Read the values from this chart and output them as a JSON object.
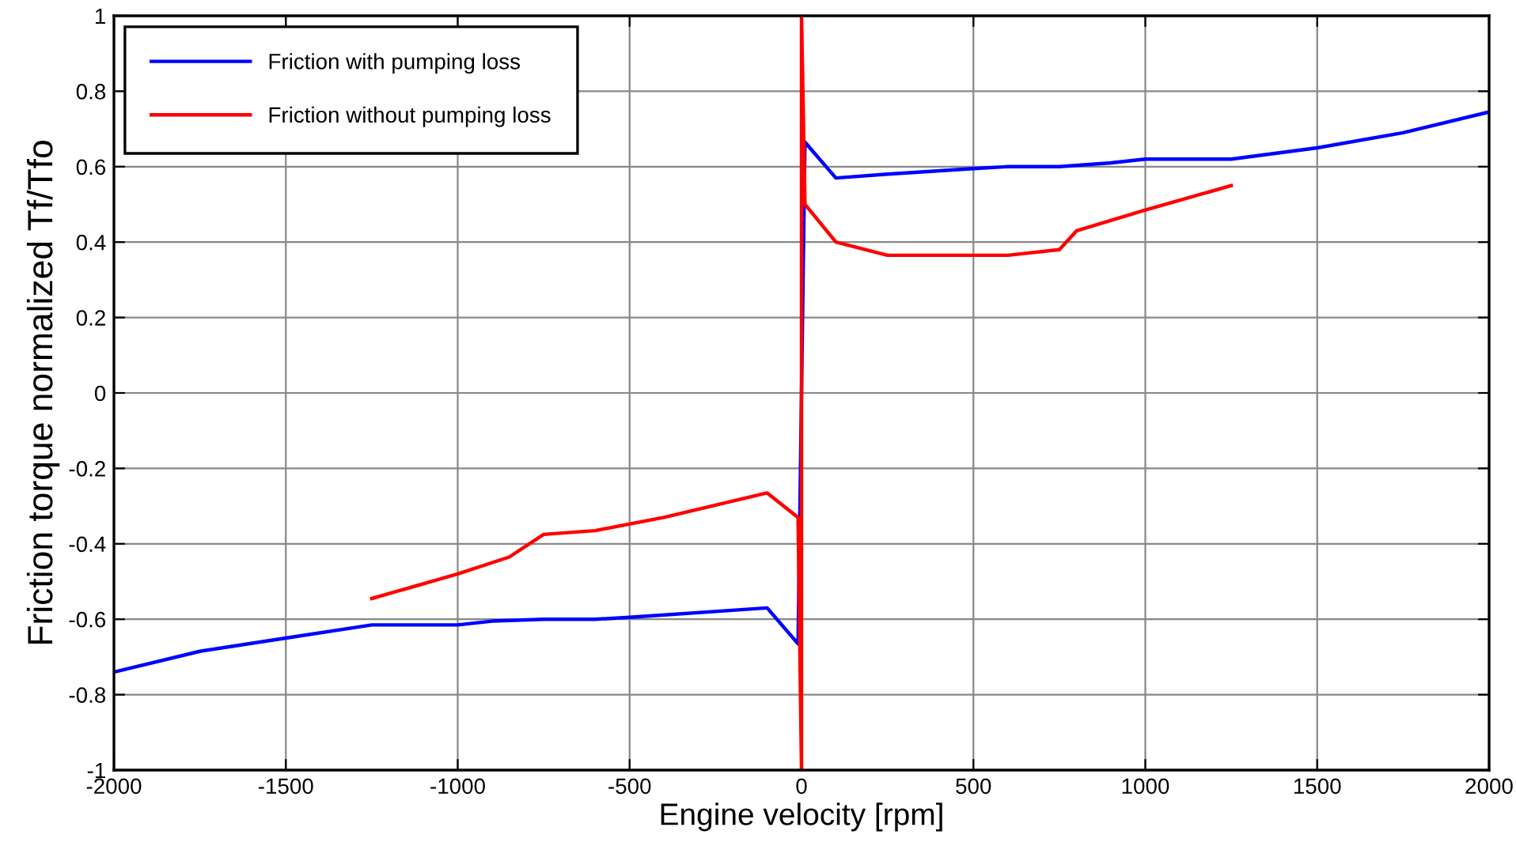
{
  "chart_data": {
    "type": "line",
    "xlabel": "Engine velocity [rpm]",
    "ylabel": "Friction torque normalized Tf/Tfo",
    "series": [
      {
        "name": "Friction with pumping loss",
        "color": "#0000ff",
        "x": [
          -2000,
          -1750,
          -1500,
          -1250,
          -1000,
          -900,
          -750,
          -600,
          -500,
          -100,
          -10,
          10,
          100,
          250,
          500,
          600,
          750,
          900,
          1000,
          1250,
          1500,
          1750,
          2000
        ],
        "values": [
          -0.74,
          -0.685,
          -0.65,
          -0.615,
          -0.615,
          -0.605,
          -0.6,
          -0.6,
          -0.595,
          -0.57,
          -0.665,
          0.665,
          0.57,
          0.58,
          0.595,
          0.6,
          0.6,
          0.61,
          0.62,
          0.62,
          0.65,
          0.69,
          0.745
        ]
      },
      {
        "name": "Friction without pumping loss",
        "color": "#ff0000",
        "x": [
          -1250,
          -1000,
          -850,
          -750,
          -600,
          -400,
          -100,
          -10,
          0,
          0,
          10,
          100,
          250,
          600,
          750,
          800,
          1000,
          1250
        ],
        "values": [
          -0.545,
          -0.48,
          -0.435,
          -0.375,
          -0.365,
          -0.33,
          -0.265,
          -0.33,
          -1,
          1,
          0.5,
          0.4,
          0.365,
          0.365,
          0.38,
          0.43,
          0.485,
          0.55
        ]
      }
    ],
    "xlim": [
      -2000,
      2000
    ],
    "ylim": [
      -1,
      1
    ],
    "xticks": [
      -2000,
      -1500,
      -1000,
      -500,
      0,
      500,
      1000,
      1500,
      2000
    ],
    "yticks": [
      -1,
      -0.8,
      -0.6,
      -0.4,
      -0.2,
      0,
      0.2,
      0.4,
      0.6,
      0.8,
      1
    ],
    "grid": true,
    "legend": "top left",
    "line_style": "solid",
    "marker": "none"
  }
}
